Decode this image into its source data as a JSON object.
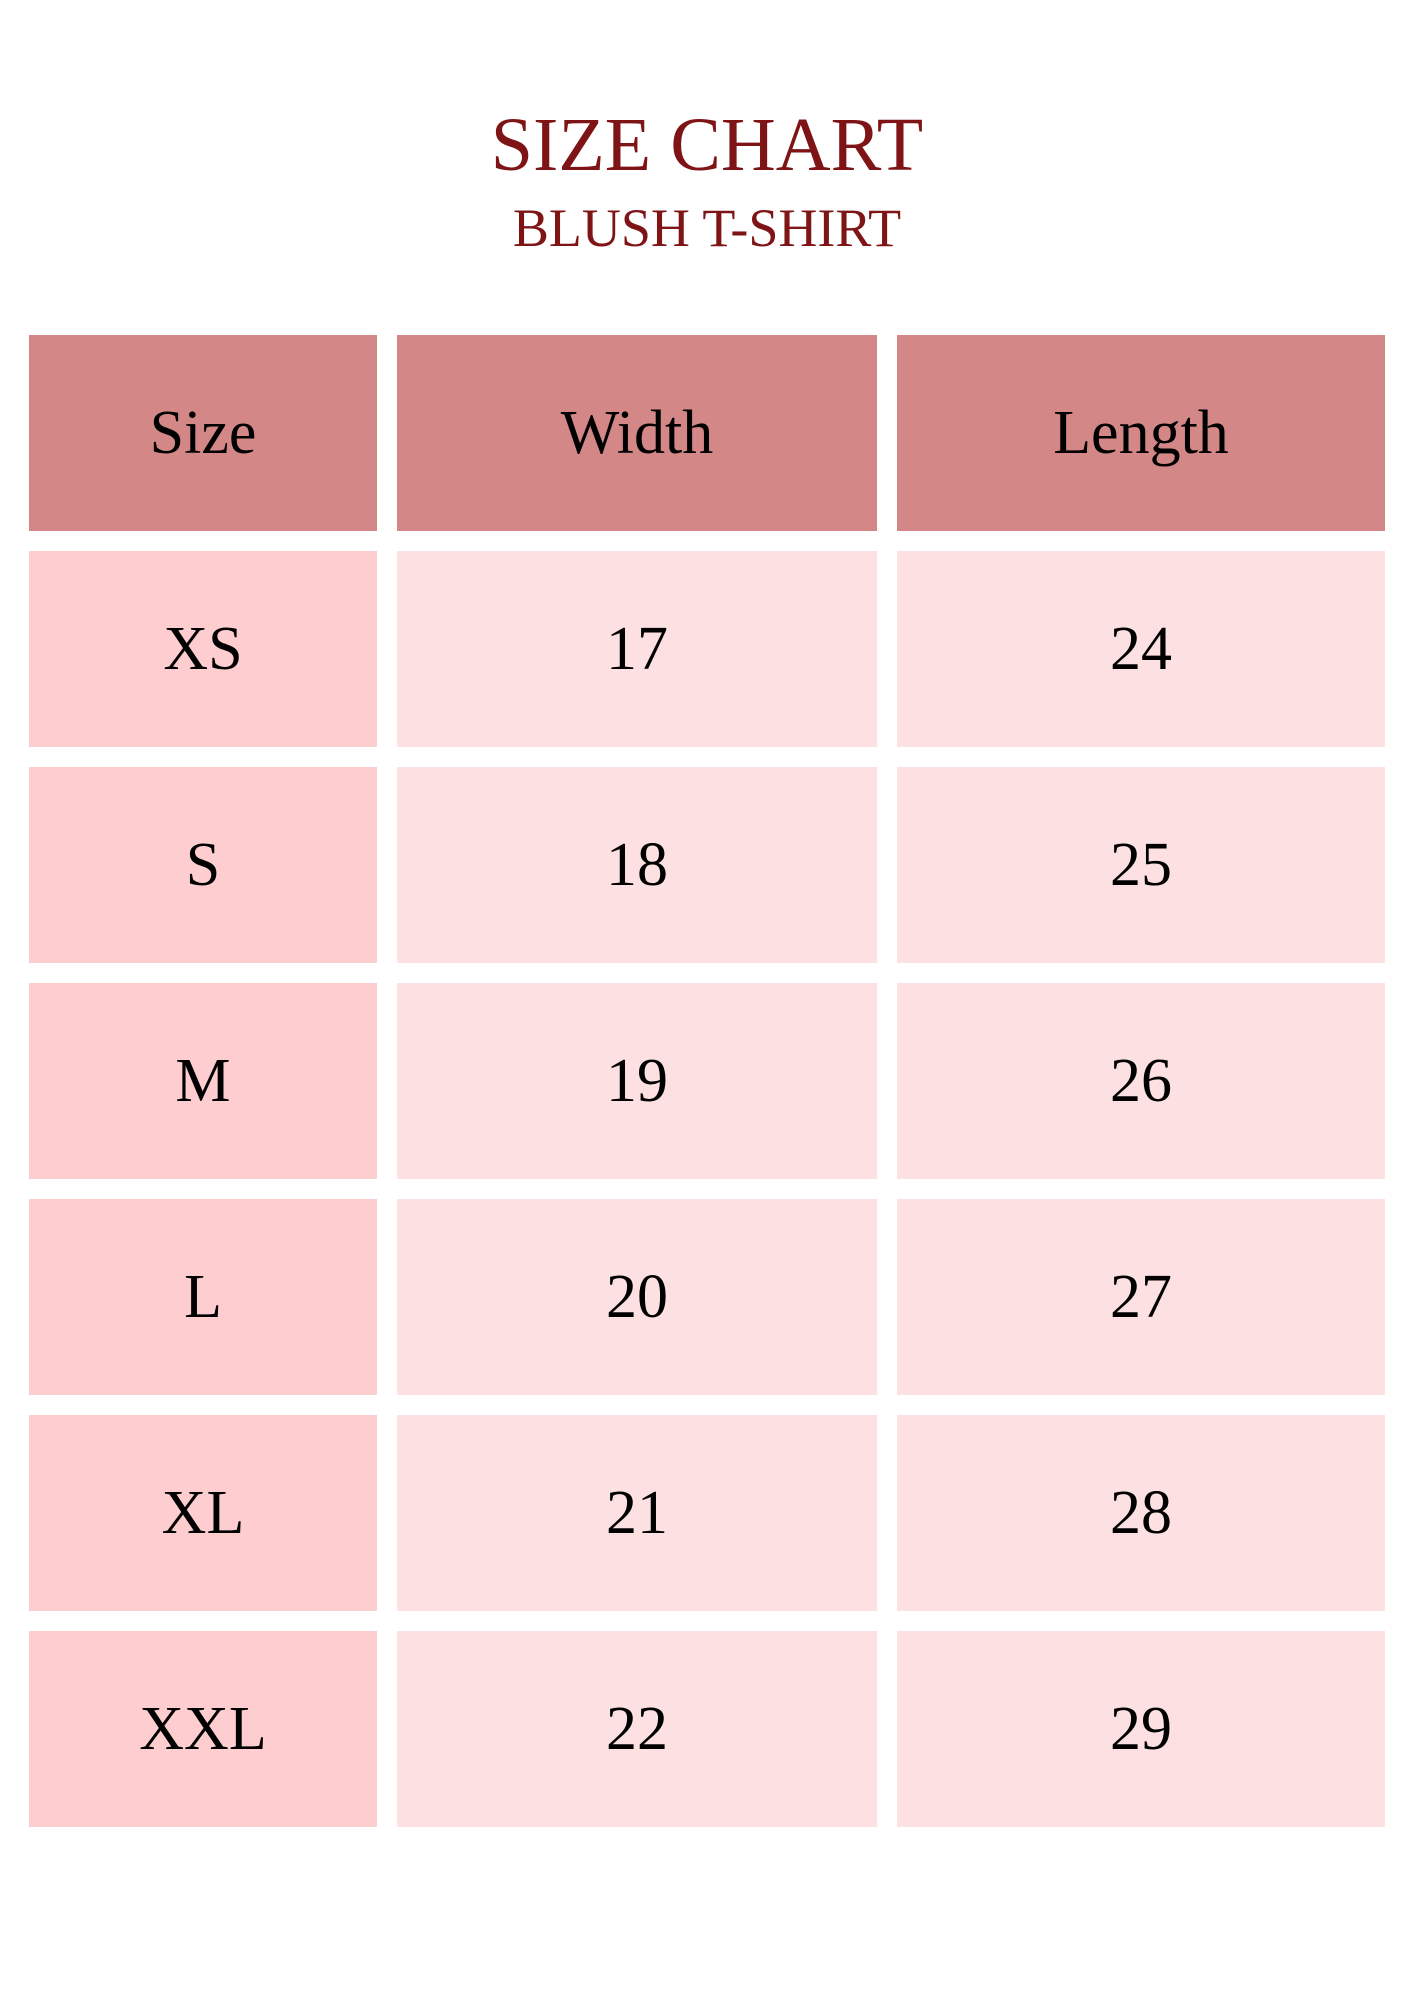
{
  "title": "SIZE CHART",
  "subtitle": "BLUSH T-SHIRT",
  "colors": {
    "title": "#7f1416",
    "header_bg": "#d48787",
    "size_col_bg": "#fdcdcf",
    "value_bg": "#fde1e2"
  },
  "table": {
    "headers": [
      "Size",
      "Width",
      "Length"
    ],
    "rows": [
      [
        "XS",
        "17",
        "24"
      ],
      [
        "S",
        "18",
        "25"
      ],
      [
        "M",
        "19",
        "26"
      ],
      [
        "L",
        "20",
        "27"
      ],
      [
        "XL",
        "21",
        "28"
      ],
      [
        "XXL",
        "22",
        "29"
      ]
    ]
  }
}
